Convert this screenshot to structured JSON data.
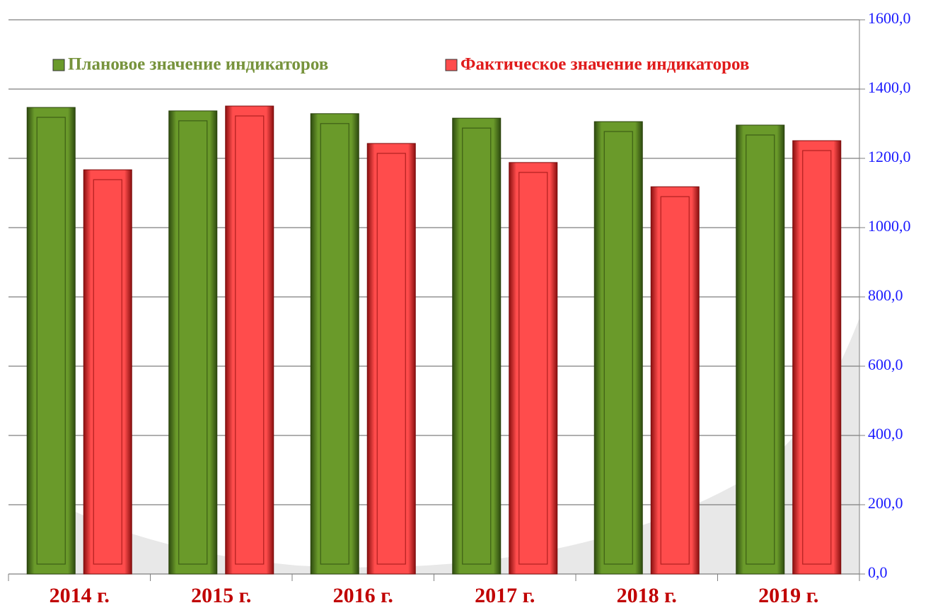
{
  "chart_data": {
    "type": "bar",
    "categories": [
      "2014 г.",
      "2015 г.",
      "2016 г.",
      "2017 г.",
      "2018 г.",
      "2019 г."
    ],
    "series": [
      {
        "name": "Плановое значение индикаторов",
        "color": "#6a9a2a",
        "values": [
          1347,
          1337,
          1329,
          1316,
          1306,
          1296
        ]
      },
      {
        "name": "Фактическое значение индикаторов",
        "color": "#ff4c4c",
        "values": [
          1167,
          1351,
          1243,
          1188,
          1118,
          1251
        ]
      }
    ],
    "ylim": [
      0,
      1600
    ],
    "yticks": [
      {
        "value": 0,
        "label": "0,0"
      },
      {
        "value": 200,
        "label": "200,0"
      },
      {
        "value": 400,
        "label": "400,0"
      },
      {
        "value": 600,
        "label": "600,0"
      },
      {
        "value": 800,
        "label": "800,0"
      },
      {
        "value": 1000,
        "label": "1000,0"
      },
      {
        "value": 1200,
        "label": "1200,0"
      },
      {
        "value": 1400,
        "label": "1400,0"
      },
      {
        "value": 1600,
        "label": "1600,0"
      }
    ],
    "grid": true,
    "legend": "top"
  }
}
